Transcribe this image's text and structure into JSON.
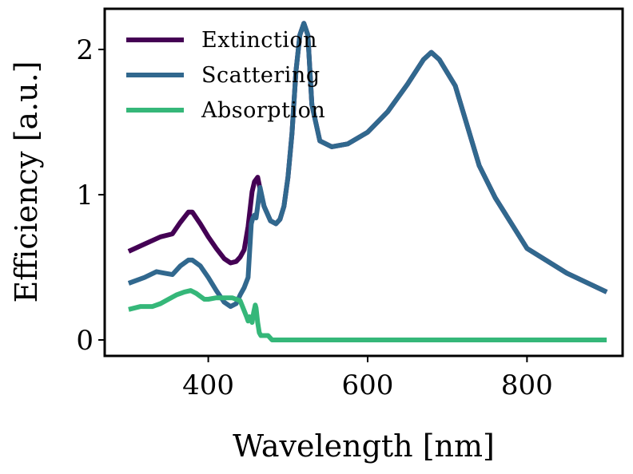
{
  "chart_data": {
    "type": "line",
    "xlabel": "Wavelength [nm]",
    "ylabel": "Efficiency [a.u.]",
    "xlim": [
      270,
      920
    ],
    "ylim": [
      -0.11,
      2.28
    ],
    "xticks": [
      400,
      600,
      800
    ],
    "xtick_labels": [
      "400",
      "600",
      "800"
    ],
    "yticks": [
      0,
      1,
      2
    ],
    "ytick_labels": [
      "0",
      "1",
      "2"
    ],
    "grid": false,
    "legend_position": "top-left",
    "series": [
      {
        "name": "Extinction",
        "color": "#440154",
        "x": [
          300,
          320,
          340,
          355,
          365,
          375,
          380,
          390,
          400,
          410,
          420,
          428,
          435,
          440,
          445,
          450,
          455,
          458,
          462,
          465,
          470,
          478,
          485,
          490,
          495,
          500,
          505,
          510,
          515,
          520,
          525,
          530,
          540,
          555,
          575,
          600,
          625,
          650,
          670,
          680,
          690,
          710,
          740,
          760,
          800,
          850,
          900
        ],
        "values": [
          0.61,
          0.66,
          0.71,
          0.73,
          0.81,
          0.88,
          0.88,
          0.8,
          0.71,
          0.63,
          0.56,
          0.53,
          0.54,
          0.57,
          0.62,
          0.78,
          1.02,
          1.09,
          1.12,
          1.04,
          0.92,
          0.82,
          0.8,
          0.83,
          0.92,
          1.12,
          1.42,
          1.85,
          2.1,
          2.18,
          2.1,
          1.62,
          1.37,
          1.33,
          1.35,
          1.43,
          1.57,
          1.76,
          1.93,
          1.98,
          1.93,
          1.75,
          1.2,
          0.98,
          0.63,
          0.46,
          0.33
        ]
      },
      {
        "name": "Scattering",
        "color": "#31688e",
        "x": [
          300,
          320,
          335,
          345,
          355,
          365,
          375,
          380,
          390,
          400,
          410,
          420,
          428,
          435,
          440,
          445,
          450,
          454,
          456,
          458,
          460,
          462,
          465,
          470,
          478,
          485,
          490,
          495,
          500,
          505,
          510,
          515,
          520,
          525,
          530,
          540,
          555,
          575,
          600,
          625,
          650,
          670,
          680,
          690,
          710,
          740,
          760,
          800,
          850,
          900
        ],
        "values": [
          0.39,
          0.43,
          0.47,
          0.46,
          0.45,
          0.51,
          0.55,
          0.55,
          0.51,
          0.43,
          0.34,
          0.26,
          0.23,
          0.25,
          0.31,
          0.36,
          0.43,
          0.8,
          0.84,
          0.86,
          0.84,
          0.92,
          1.05,
          0.92,
          0.82,
          0.8,
          0.83,
          0.92,
          1.12,
          1.42,
          1.85,
          2.1,
          2.18,
          2.1,
          1.62,
          1.37,
          1.33,
          1.35,
          1.43,
          1.57,
          1.76,
          1.93,
          1.98,
          1.93,
          1.75,
          1.2,
          0.98,
          0.63,
          0.46,
          0.33
        ]
      },
      {
        "name": "Absorption",
        "color": "#35b779",
        "x": [
          300,
          315,
          330,
          340,
          350,
          360,
          370,
          378,
          385,
          390,
          395,
          400,
          410,
          420,
          430,
          440,
          448,
          450,
          452,
          455,
          457,
          459,
          460,
          462,
          464,
          466,
          470,
          475,
          480,
          490,
          500,
          900
        ],
        "values": [
          0.21,
          0.23,
          0.23,
          0.25,
          0.28,
          0.31,
          0.33,
          0.34,
          0.32,
          0.3,
          0.28,
          0.28,
          0.29,
          0.29,
          0.29,
          0.27,
          0.16,
          0.13,
          0.16,
          0.12,
          0.19,
          0.24,
          0.22,
          0.12,
          0.05,
          0.03,
          0.03,
          0.03,
          0.0,
          0.0,
          0.0,
          0.0
        ]
      }
    ]
  }
}
